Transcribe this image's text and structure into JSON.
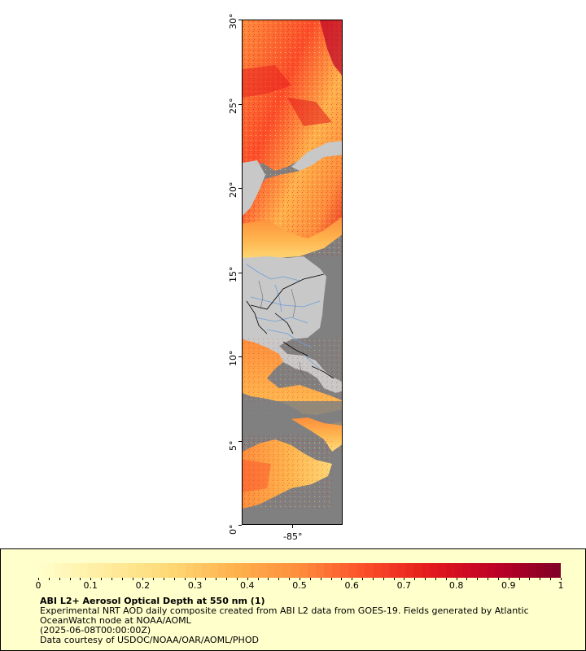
{
  "map": {
    "lat_ticks": [
      "0°",
      "5°",
      "10°",
      "15°",
      "20°",
      "25°",
      "30°"
    ],
    "lon_ticks": [
      "-85°"
    ],
    "lat_range": [
      0,
      30
    ],
    "colors": {
      "ocean_nodata": "#808080",
      "land": "#c8c8c8",
      "rivers": "#6f9fd8",
      "borders": "#000000"
    }
  },
  "legend": {
    "title": "ABI L2+ Aerosol Optical Depth at 550 nm (1)",
    "description": "Experimental NRT AOD daily composite created from ABI L2 data from GOES-19. Fields generated by Atlantic OceanWatch node at NOAA/AOML",
    "date": "(2025-06-08T00:00:00Z)",
    "credit": "Data courtesy of USDOC/NOAA/OAR/AOML/PHOD",
    "colorbar_ticks": [
      "0",
      "0.1",
      "0.2",
      "0.3",
      "0.4",
      "0.5",
      "0.6",
      "0.7",
      "0.8",
      "0.9",
      "1"
    ],
    "colorbar_range": [
      0,
      1
    ],
    "colorbar_stops": [
      "#ffffcc",
      "#ffeda0",
      "#fed976",
      "#feb24c",
      "#fd8d3c",
      "#fc4e2a",
      "#e31a1c",
      "#bd0026",
      "#800026"
    ]
  }
}
